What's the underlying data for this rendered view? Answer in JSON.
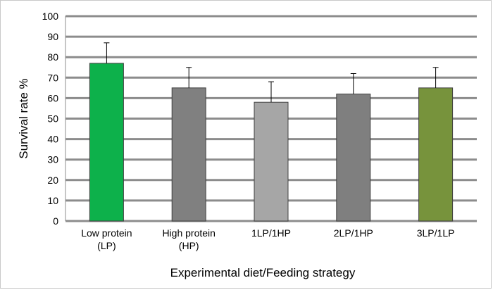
{
  "chart_data": {
    "type": "bar",
    "title": "",
    "xlabel": "Experimental diet/Feeding strategy",
    "ylabel": "Survival rate %",
    "ylim": [
      0,
      100
    ],
    "yticks": [
      0,
      10,
      20,
      30,
      40,
      50,
      60,
      70,
      80,
      90,
      100
    ],
    "grid": true,
    "legend": "none",
    "categories": [
      [
        "Low protein",
        "(LP)"
      ],
      [
        "High protein",
        "(HP)"
      ],
      [
        "1LP/1HP"
      ],
      [
        "2LP/1HP"
      ],
      [
        "3LP/1LP"
      ]
    ],
    "values": [
      77,
      65,
      58,
      62,
      65
    ],
    "error_plus": [
      10,
      10,
      10,
      10,
      10
    ],
    "bar_colors": [
      "#0db14b",
      "#808080",
      "#a6a6a6",
      "#7f7f7f",
      "#77933c"
    ],
    "gridline_color": "#8c8c8c"
  }
}
